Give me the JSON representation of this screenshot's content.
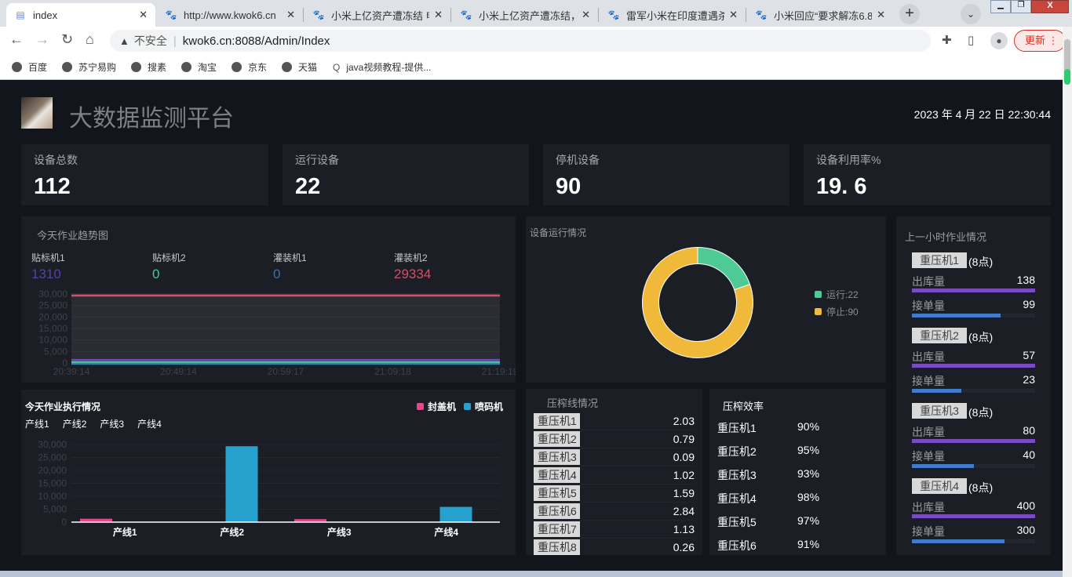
{
  "browser": {
    "tabs": [
      {
        "title": "index",
        "active": true
      },
      {
        "title": "http://www.kwok6.cn"
      },
      {
        "title": "小米上亿资产遭冻结 申"
      },
      {
        "title": "小米上亿资产遭冻结，"
      },
      {
        "title": "雷军小米在印度遭遇杀"
      },
      {
        "title": "小米回应“要求解冻6.8"
      }
    ],
    "security": "不安全",
    "url": "kwok6.cn:8088/Admin/Index",
    "update_label": "更新",
    "bookmarks": [
      "百度",
      "苏宁易购",
      "搜素",
      "淘宝",
      "京东",
      "天猫",
      "java视频教程-提供..."
    ]
  },
  "header": {
    "title": "大数据监测平台",
    "datetime": "2023 年 4 月 22 日 22:30:44"
  },
  "stats": [
    {
      "label": "设备总数",
      "value": "112"
    },
    {
      "label": "运行设备",
      "value": "22"
    },
    {
      "label": "停机设备",
      "value": "90"
    },
    {
      "label": "设备利用率%",
      "value": "19. 6"
    }
  ],
  "trend": {
    "title": "今天作业趋势图",
    "machines": [
      {
        "name": "贴标机1",
        "value": "1310",
        "color": "#5b3fa8"
      },
      {
        "name": "贴标机2",
        "value": "0",
        "color": "#3fcf9a"
      },
      {
        "name": "灌装机1",
        "value": "0",
        "color": "#3a6fb0"
      },
      {
        "name": "灌装机2",
        "value": "29334",
        "color": "#d0506a"
      }
    ]
  },
  "status": {
    "title": "设备运行情况",
    "legend": [
      "运行:22",
      "停止:90"
    ]
  },
  "press_line": {
    "title": "压榨线情况",
    "rows": [
      {
        "name": "重压机1",
        "value": "2.03"
      },
      {
        "name": "重压机2",
        "value": "0.79"
      },
      {
        "name": "重压机3",
        "value": "0.09"
      },
      {
        "name": "重压机4",
        "value": "1.02"
      },
      {
        "name": "重压机5",
        "value": "1.59"
      },
      {
        "name": "重压机6",
        "value": "2.84"
      },
      {
        "name": "重压机7",
        "value": "1.13"
      },
      {
        "name": "重压机8",
        "value": "0.26"
      }
    ]
  },
  "efficiency": {
    "title": "压榨效率",
    "rows": [
      {
        "name": "重压机1",
        "value": "90%"
      },
      {
        "name": "重压机2",
        "value": "95%"
      },
      {
        "name": "重压机3",
        "value": "93%"
      },
      {
        "name": "重压机4",
        "value": "98%"
      },
      {
        "name": "重压机5",
        "value": "97%"
      },
      {
        "name": "重压机6",
        "value": "91%"
      }
    ]
  },
  "hourly": {
    "title": "上一小时作业情况",
    "out_label": "出库量",
    "order_label": "接单量",
    "items": [
      {
        "name": "重压机1",
        "point": "(8点)",
        "out": "138",
        "order": "99",
        "order_fraction": 0.72
      },
      {
        "name": "重压机2",
        "point": "(8点)",
        "out": "57",
        "order": "23",
        "order_fraction": 0.4
      },
      {
        "name": "重压机3",
        "point": "(8点)",
        "out": "80",
        "order": "40",
        "order_fraction": 0.5
      },
      {
        "name": "重压机4",
        "point": "(8点)",
        "out": "400",
        "order": "300",
        "order_fraction": 0.75
      }
    ]
  },
  "bar_panel": {
    "title": "今天作业执行情况",
    "tabs": [
      "产线1",
      "产线2",
      "产线3",
      "产线4"
    ]
  },
  "chart_data": [
    {
      "type": "line",
      "title": "今天作业趋势图",
      "x": [
        "20:39:14",
        "20:49:14",
        "20:59:17",
        "21:09:18",
        "21:19:19"
      ],
      "ylim": [
        0,
        30000
      ],
      "yticks": [
        "30,000",
        "25,000",
        "20,000",
        "15,000",
        "10,000",
        "5,000",
        "0"
      ],
      "series": [
        {
          "name": "贴标机1",
          "value": 1310,
          "color": "#6b4bb8"
        },
        {
          "name": "贴标机2",
          "value": 0,
          "color": "#3fcf9a"
        },
        {
          "name": "灌装机1",
          "value": 0,
          "color": "#3a7fb0"
        },
        {
          "name": "灌装机2",
          "value": 29334,
          "color": "#d0506a"
        }
      ]
    },
    {
      "type": "pie",
      "title": "设备运行情况",
      "slices": [
        {
          "name": "运行",
          "value": 22,
          "color": "#4ecb95"
        },
        {
          "name": "停止",
          "value": 90,
          "color": "#f0b93a"
        }
      ]
    },
    {
      "type": "bar",
      "title": "今天作业执行情况",
      "categories": [
        "产线1",
        "产线2",
        "产线3",
        "产线4"
      ],
      "ylim": [
        0,
        30000
      ],
      "yticks": [
        "30,000",
        "25,000",
        "20,000",
        "15,000",
        "10,000",
        "5,000",
        "0"
      ],
      "series": [
        {
          "name": "封盖机",
          "values": [
            1310,
            0,
            1150,
            0
          ],
          "color": "#e8478e"
        },
        {
          "name": "喷码机",
          "values": [
            0,
            29334,
            0,
            5900
          ],
          "color": "#26a0cc"
        }
      ]
    }
  ]
}
